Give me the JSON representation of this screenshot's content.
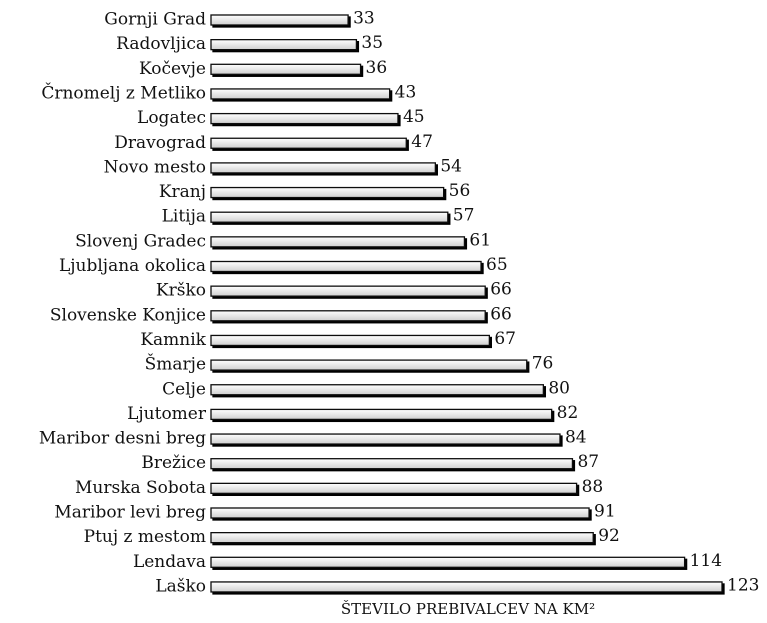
{
  "chart_data": {
    "type": "barh",
    "categories": [
      "Gornji Grad",
      "Radovljica",
      "Kočevje",
      "Črnomelj z Metliko",
      "Logatec",
      "Dravograd",
      "Novo mesto",
      "Kranj",
      "Litija",
      "Slovenj Gradec",
      "Ljubljana okolica",
      "Krško",
      "Slovenske Konjice",
      "Kamnik",
      "Šmarje",
      "Celje",
      "Ljutomer",
      "Maribor desni breg",
      "Brežice",
      "Murska Sobota",
      "Maribor levi breg",
      "Ptuj z mestom",
      "Lendava",
      "Laško"
    ],
    "values": [
      33,
      35,
      36,
      43,
      45,
      47,
      54,
      56,
      57,
      61,
      65,
      66,
      66,
      67,
      76,
      80,
      82,
      84,
      87,
      88,
      91,
      92,
      114,
      123
    ],
    "color": "#f0f0f0",
    "x_label": "ŠTEVILO PREBIVALCEV NA KM²"
  }
}
